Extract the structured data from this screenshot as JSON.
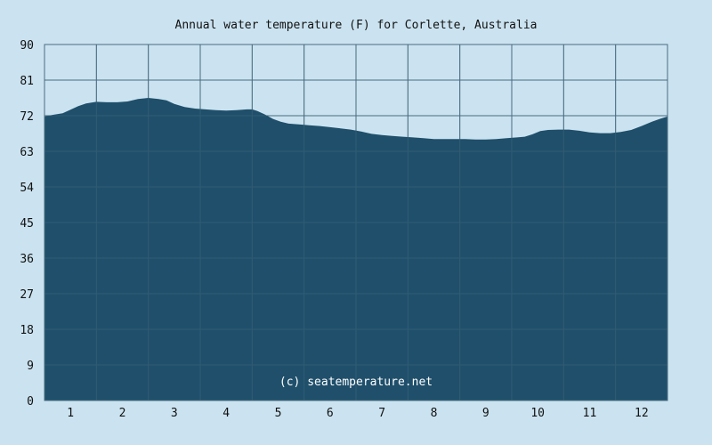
{
  "chart_data": {
    "type": "area",
    "title": "Annual water temperature (F) for Corlette, Australia",
    "watermark": "(c) seatemperature.net",
    "xlabel": "",
    "ylabel": "",
    "ylim": [
      0,
      90
    ],
    "yticks": [
      "0",
      "9",
      "18",
      "27",
      "36",
      "45",
      "54",
      "63",
      "72",
      "81",
      "90"
    ],
    "xticks": [
      "1",
      "2",
      "3",
      "4",
      "5",
      "6",
      "7",
      "8",
      "9",
      "10",
      "11",
      "12"
    ],
    "grid": true,
    "x_month": [
      0.5,
      0.65,
      0.85,
      1.0,
      1.15,
      1.3,
      1.5,
      1.7,
      1.9,
      2.1,
      2.3,
      2.5,
      2.7,
      2.85,
      3.0,
      3.2,
      3.4,
      3.6,
      3.8,
      4.0,
      4.2,
      4.4,
      4.5,
      4.6,
      4.75,
      4.9,
      5.05,
      5.2,
      5.4,
      5.6,
      5.8,
      6.0,
      6.2,
      6.4,
      6.6,
      6.8,
      7.0,
      7.2,
      7.4,
      7.6,
      7.8,
      8.0,
      8.2,
      8.4,
      8.6,
      8.8,
      9.0,
      9.2,
      9.4,
      9.6,
      9.75,
      9.9,
      10.05,
      10.2,
      10.4,
      10.6,
      10.8,
      11.0,
      11.2,
      11.4,
      11.6,
      11.8,
      12.0,
      12.2,
      12.35,
      12.5
    ],
    "values": [
      71.8,
      72.2,
      72.6,
      73.5,
      74.4,
      75.1,
      75.5,
      75.4,
      75.4,
      75.6,
      76.2,
      76.5,
      76.2,
      75.9,
      75.0,
      74.2,
      73.8,
      73.6,
      73.4,
      73.3,
      73.4,
      73.6,
      73.6,
      73.2,
      72.3,
      71.2,
      70.5,
      70.0,
      69.8,
      69.6,
      69.4,
      69.1,
      68.8,
      68.5,
      68.0,
      67.4,
      67.1,
      66.9,
      66.7,
      66.5,
      66.3,
      66.1,
      66.1,
      66.1,
      66.1,
      66.0,
      66.0,
      66.1,
      66.3,
      66.5,
      66.7,
      67.3,
      68.1,
      68.4,
      68.5,
      68.5,
      68.2,
      67.8,
      67.6,
      67.6,
      67.9,
      68.4,
      69.4,
      70.5,
      71.2,
      71.8
    ]
  },
  "colors": {
    "background": "#cbe3f0",
    "plot_background": "#cbe3f0",
    "area_fill": "#1f4f6b",
    "grid": "#4a6b80"
  }
}
